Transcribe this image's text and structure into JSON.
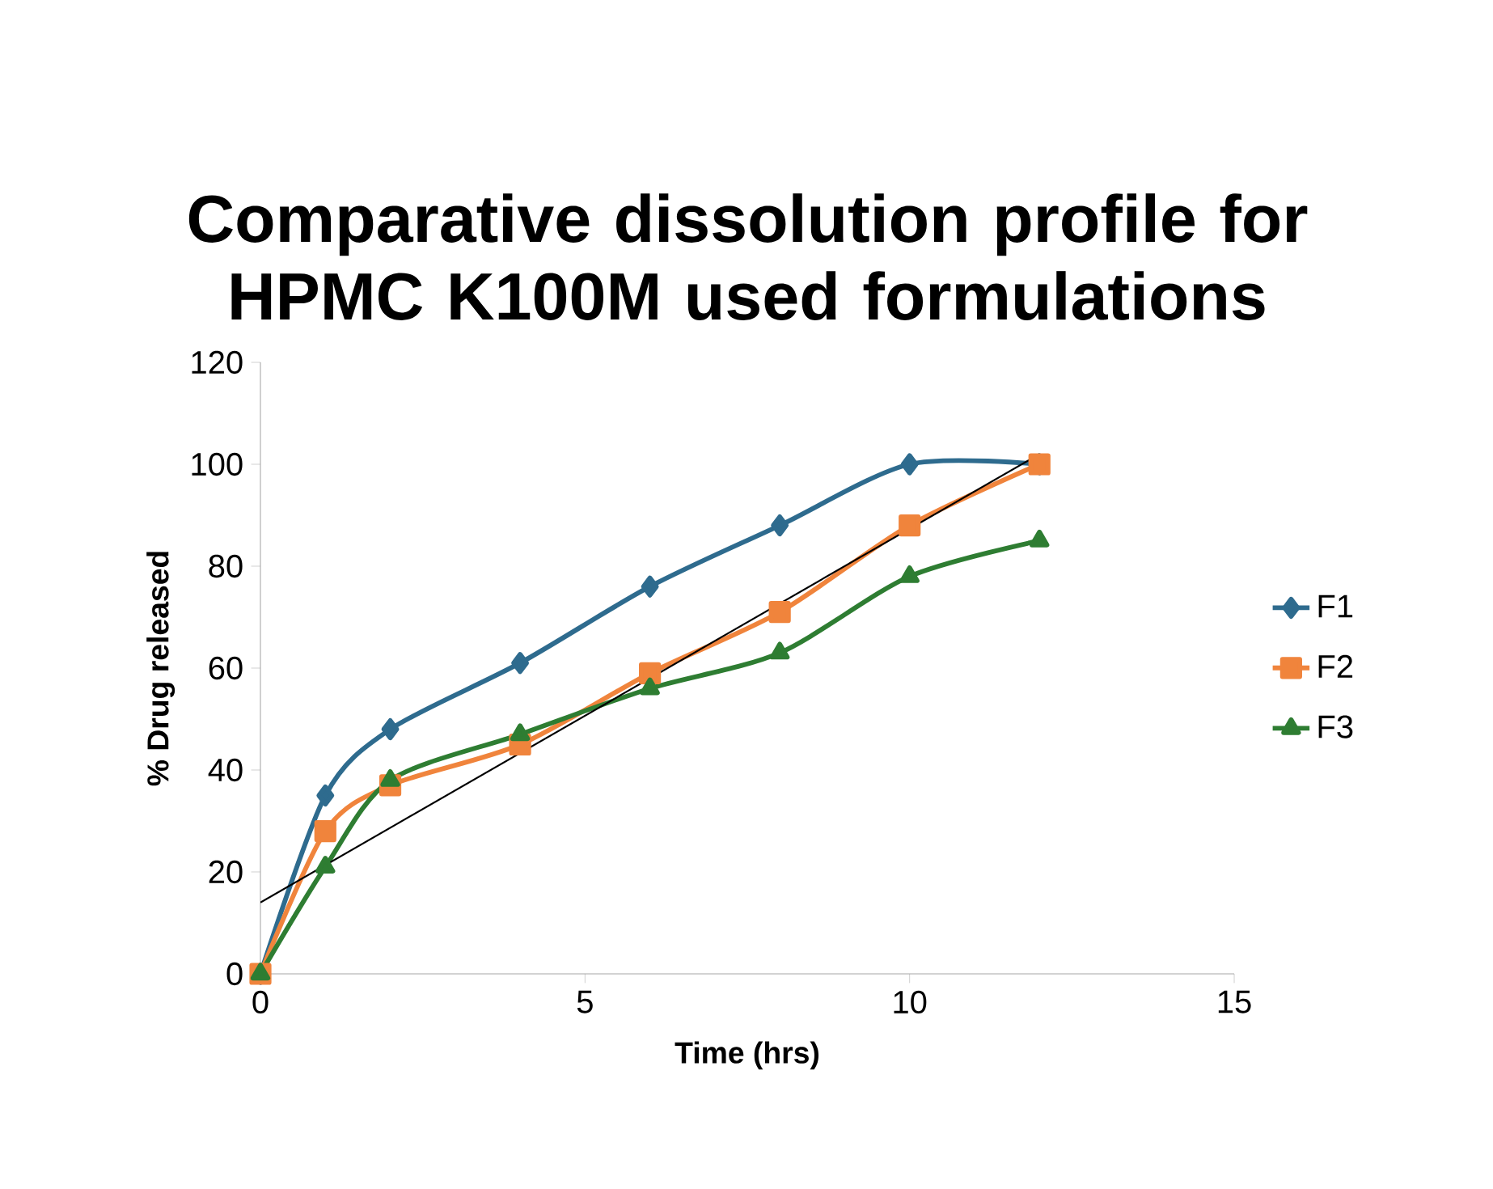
{
  "chart_data": {
    "type": "line",
    "title": "Comparative dissolution profile for HPMC K100M used formulations",
    "xlabel": "Time (hrs)",
    "ylabel": "% Drug released",
    "x": [
      0,
      1,
      2,
      4,
      6,
      8,
      10,
      12
    ],
    "series": [
      {
        "name": "F1",
        "color": "#2e6b8e",
        "marker": "diamond",
        "values": [
          0,
          35,
          48,
          61,
          76,
          88,
          100,
          100
        ]
      },
      {
        "name": "F2",
        "color": "#f0843c",
        "marker": "square",
        "values": [
          0,
          28,
          37,
          45,
          59,
          71,
          88,
          100
        ]
      },
      {
        "name": "F3",
        "color": "#2e7d32",
        "marker": "triangle",
        "values": [
          0,
          21,
          38,
          47,
          56,
          63,
          78,
          85
        ]
      },
      {
        "color": "#000000",
        "marker": "none",
        "x": [
          0,
          12
        ],
        "values": [
          14,
          102
        ]
      }
    ],
    "xlim": [
      0,
      15
    ],
    "ylim": [
      0,
      120
    ],
    "xticks": [
      0,
      5,
      10,
      15
    ],
    "yticks": [
      0,
      20,
      40,
      60,
      80,
      100,
      120
    ],
    "grid": false,
    "legend": "right"
  }
}
